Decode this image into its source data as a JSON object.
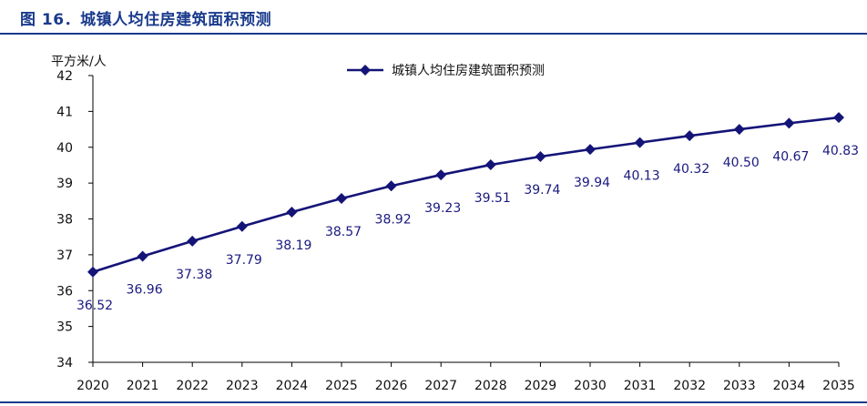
{
  "figure": {
    "title": "图 16．城镇人均住房建筑面积预测"
  },
  "colors": {
    "accent": "#1a3a8c",
    "series": "#141478",
    "text": "#1a1a80"
  },
  "chart_data": {
    "type": "line",
    "title": "",
    "xlabel": "",
    "ylabel": "平方米/人",
    "ylim": [
      34,
      42
    ],
    "yticks": [
      "34",
      "35",
      "36",
      "37",
      "38",
      "39",
      "40",
      "41",
      "42"
    ],
    "categories": [
      "2020",
      "2021",
      "2022",
      "2023",
      "2024",
      "2025",
      "2026",
      "2027",
      "2028",
      "2029",
      "2030",
      "2031",
      "2032",
      "2033",
      "2034",
      "2035"
    ],
    "series": [
      {
        "name": "城镇人均住房建筑面积预测",
        "values": [
          36.52,
          36.96,
          37.38,
          37.79,
          38.19,
          38.57,
          38.92,
          39.23,
          39.51,
          39.74,
          39.94,
          40.13,
          40.32,
          40.5,
          40.67,
          40.83
        ],
        "labels": [
          "36.52",
          "36.96",
          "37.38",
          "37.79",
          "38.19",
          "38.57",
          "38.92",
          "39.23",
          "39.51",
          "39.74",
          "39.94",
          "40.13",
          "40.32",
          "40.50",
          "40.67",
          "40.83"
        ]
      }
    ],
    "grid": false,
    "legend": "top-center",
    "marker": "diamond"
  }
}
